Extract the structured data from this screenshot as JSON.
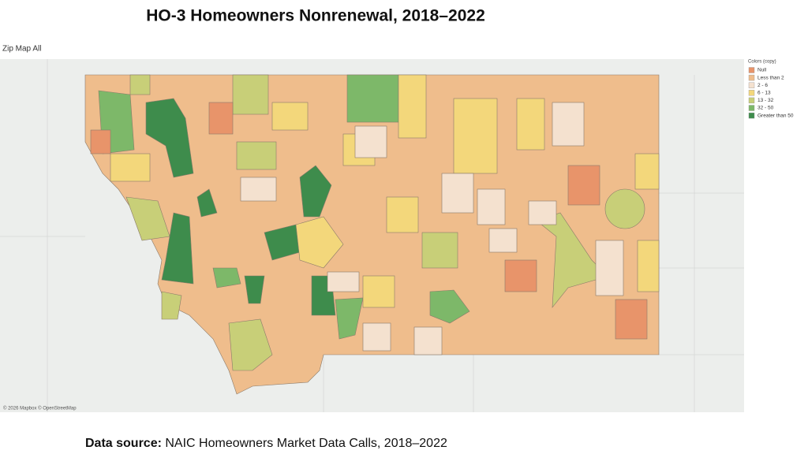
{
  "header": {
    "title": "HO-3 Homeowners Nonrenewal, 2018–2022",
    "sheet_name": "Zip Map All"
  },
  "map": {
    "attribution": "© 2026 Mapbox © OpenStreetMap"
  },
  "legend": {
    "title": "Colors (copy)",
    "items": [
      {
        "label": "Null",
        "color": "#e8946a"
      },
      {
        "label": "Less than 2",
        "color": "#efbd8c"
      },
      {
        "label": "2 - 6",
        "color": "#f4e1cf"
      },
      {
        "label": "6 - 13",
        "color": "#f3d77b"
      },
      {
        "label": "13 - 32",
        "color": "#c8cf78"
      },
      {
        "label": "32 - 50",
        "color": "#7db869"
      },
      {
        "label": "Greater than 50",
        "color": "#3e8c4c"
      }
    ]
  },
  "footer": {
    "source_label": "Data source:",
    "source_text": "NAIC Homeowners Market Data Calls, 2018–2022"
  }
}
